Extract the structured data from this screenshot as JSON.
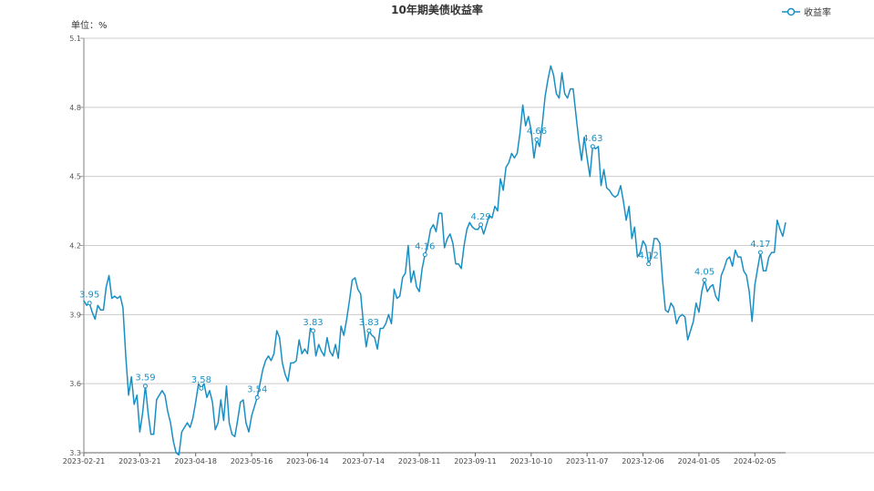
{
  "chart_data": {
    "type": "line",
    "title": "10年期美债收益率",
    "ylabel": "单位：%",
    "ylim": [
      3.3,
      5.1
    ],
    "yticks": [
      3.3,
      3.6,
      3.9,
      4.2,
      4.5,
      4.8,
      5.1
    ],
    "xtick_labels": [
      "2023-02-21",
      "2023-03-21",
      "2023-04-18",
      "2023-05-16",
      "2023-06-14",
      "2023-07-14",
      "2023-08-11",
      "2023-09-11",
      "2023-10-10",
      "2023-11-07",
      "2023-12-06",
      "2024-01-05",
      "2024-02-05"
    ],
    "grid": true,
    "legend_position": "top-right",
    "color": "#1a8fc4",
    "series": [
      {
        "name": "收益率",
        "values": [
          3.96,
          3.94,
          3.95,
          3.91,
          3.88,
          3.94,
          3.92,
          3.92,
          4.02,
          4.07,
          3.97,
          3.98,
          3.97,
          3.98,
          3.93,
          3.72,
          3.55,
          3.63,
          3.51,
          3.55,
          3.39,
          3.47,
          3.59,
          3.47,
          3.38,
          3.38,
          3.53,
          3.55,
          3.57,
          3.55,
          3.48,
          3.43,
          3.35,
          3.3,
          3.29,
          3.39,
          3.41,
          3.43,
          3.41,
          3.45,
          3.52,
          3.6,
          3.58,
          3.6,
          3.54,
          3.57,
          3.52,
          3.4,
          3.43,
          3.53,
          3.44,
          3.59,
          3.43,
          3.38,
          3.37,
          3.44,
          3.52,
          3.53,
          3.43,
          3.39,
          3.46,
          3.5,
          3.54,
          3.6,
          3.66,
          3.7,
          3.72,
          3.7,
          3.73,
          3.83,
          3.8,
          3.69,
          3.64,
          3.61,
          3.69,
          3.69,
          3.7,
          3.79,
          3.73,
          3.75,
          3.73,
          3.84,
          3.83,
          3.72,
          3.77,
          3.74,
          3.72,
          3.8,
          3.74,
          3.72,
          3.77,
          3.71,
          3.85,
          3.81,
          3.88,
          3.96,
          4.05,
          4.06,
          4.01,
          3.99,
          3.86,
          3.76,
          3.83,
          3.81,
          3.8,
          3.75,
          3.84,
          3.84,
          3.86,
          3.9,
          3.86,
          4.01,
          3.97,
          3.98,
          4.06,
          4.08,
          4.2,
          4.04,
          4.09,
          4.02,
          4.0,
          4.1,
          4.16,
          4.2,
          4.27,
          4.29,
          4.26,
          4.34,
          4.34,
          4.19,
          4.23,
          4.25,
          4.21,
          4.12,
          4.12,
          4.1,
          4.2,
          4.27,
          4.3,
          4.28,
          4.27,
          4.27,
          4.29,
          4.25,
          4.29,
          4.33,
          4.32,
          4.37,
          4.35,
          4.49,
          4.44,
          4.54,
          4.56,
          4.6,
          4.58,
          4.6,
          4.69,
          4.81,
          4.72,
          4.76,
          4.7,
          4.58,
          4.66,
          4.63,
          4.73,
          4.85,
          4.92,
          4.98,
          4.94,
          4.86,
          4.84,
          4.95,
          4.86,
          4.84,
          4.88,
          4.88,
          4.77,
          4.66,
          4.57,
          4.67,
          4.58,
          4.5,
          4.63,
          4.62,
          4.63,
          4.46,
          4.53,
          4.45,
          4.44,
          4.42,
          4.41,
          4.42,
          4.46,
          4.39,
          4.31,
          4.37,
          4.23,
          4.28,
          4.15,
          4.17,
          4.22,
          4.2,
          4.12,
          4.15,
          4.23,
          4.23,
          4.21,
          4.05,
          3.92,
          3.91,
          3.95,
          3.93,
          3.86,
          3.89,
          3.9,
          3.89,
          3.79,
          3.83,
          3.87,
          3.95,
          3.91,
          4.0,
          4.05,
          4.0,
          4.02,
          4.03,
          3.98,
          3.96,
          4.07,
          4.1,
          4.14,
          4.15,
          4.11,
          4.18,
          4.15,
          4.15,
          4.09,
          4.07,
          4.0,
          3.87,
          4.03,
          4.1,
          4.17,
          4.09,
          4.09,
          4.15,
          4.17,
          4.17,
          4.31,
          4.27,
          4.24,
          4.3
        ]
      }
    ]
  }
}
